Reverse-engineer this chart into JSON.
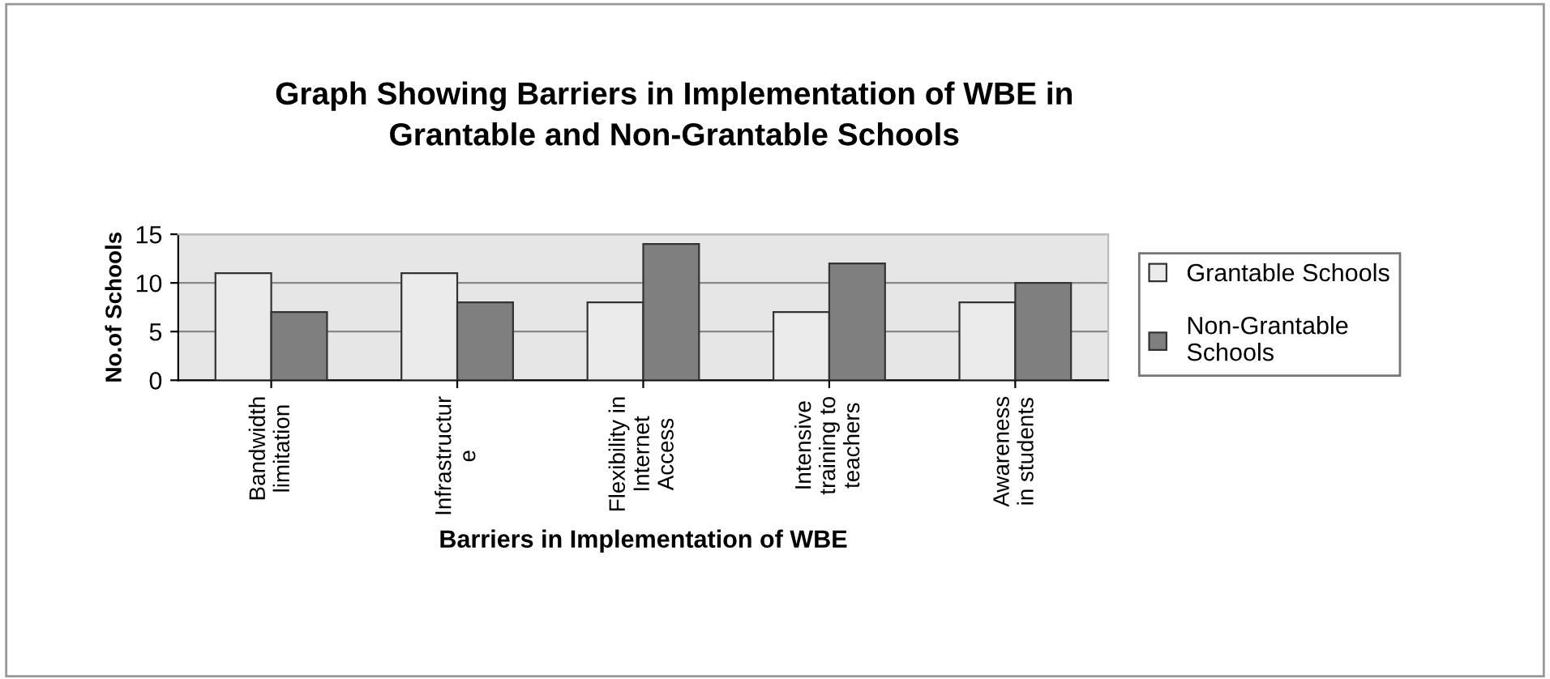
{
  "chart_data": {
    "type": "bar",
    "title": "Graph Showing Barriers in Implementation of WBE in\nGrantable and Non-Grantable Schools",
    "xlabel": "Barriers in Implementation of WBE",
    "ylabel": "No.of Schools",
    "categories": [
      "Bandwidth\nlimitation",
      "Infrastructur\ne",
      "Flexibility in\nInternet\nAccess",
      "Intensive\ntraining to\nteachers",
      "Awareness\nin students"
    ],
    "series": [
      {
        "name": "Grantable Schools",
        "color": "#ebebeb",
        "values": [
          11,
          11,
          8,
          7,
          8
        ]
      },
      {
        "name": "Non-Grantable\nSchools",
        "color": "#7f7f7f",
        "values": [
          7,
          8,
          14,
          12,
          10
        ]
      }
    ],
    "ylim": [
      0,
      15
    ],
    "yticks": [
      0,
      5,
      10,
      15
    ],
    "grid": "y",
    "legend": "right"
  }
}
